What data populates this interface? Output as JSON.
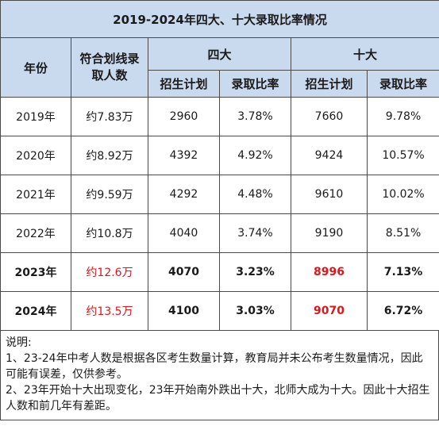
{
  "title": "2019-2024年四大、十大录取比率情况",
  "headers": {
    "year": "年份",
    "line_people": "符合划线录取人数",
    "four": "四大",
    "ten": "十大",
    "plan": "招生计划",
    "ratio": "录取比率"
  },
  "rows": [
    {
      "year": "2019年",
      "people": "约7.83万",
      "four_plan": "2960",
      "four_ratio": "3.78%",
      "ten_plan": "7660",
      "ten_ratio": "9.78%"
    },
    {
      "year": "2020年",
      "people": "约8.92万",
      "four_plan": "4392",
      "four_ratio": "4.92%",
      "ten_plan": "9424",
      "ten_ratio": "10.57%"
    },
    {
      "year": "2021年",
      "people": "约9.59万",
      "four_plan": "4292",
      "four_ratio": "4.48%",
      "ten_plan": "9610",
      "ten_ratio": "10.02%"
    },
    {
      "year": "2022年",
      "people": "约10.8万",
      "four_plan": "4040",
      "four_ratio": "3.74%",
      "ten_plan": "9190",
      "ten_ratio": "8.51%"
    },
    {
      "year": "2023年",
      "people": "约12.6万",
      "four_plan": "4070",
      "four_ratio": "3.23%",
      "ten_plan": "8996",
      "ten_ratio": "7.13%"
    },
    {
      "year": "2024年",
      "people": "约13.5万",
      "four_plan": "4100",
      "four_ratio": "3.03%",
      "ten_plan": "9070",
      "ten_ratio": "6.72%"
    }
  ],
  "notes": {
    "heading": "说明:",
    "line1": "1、23-24年中考人数是根据各区考生数量计算，教育局并未公布考生数量情况，因此可能有误差，仅供参考。",
    "line2": "2、23年开始十大出现变化，23年开始南外跌出十大，北师大成为十大。因此十大招生人数和前几年有差距。"
  },
  "colors": {
    "header_bg": "#c9d9ee",
    "highlight_red": "#e0151a",
    "border": "#4a4a4a"
  }
}
